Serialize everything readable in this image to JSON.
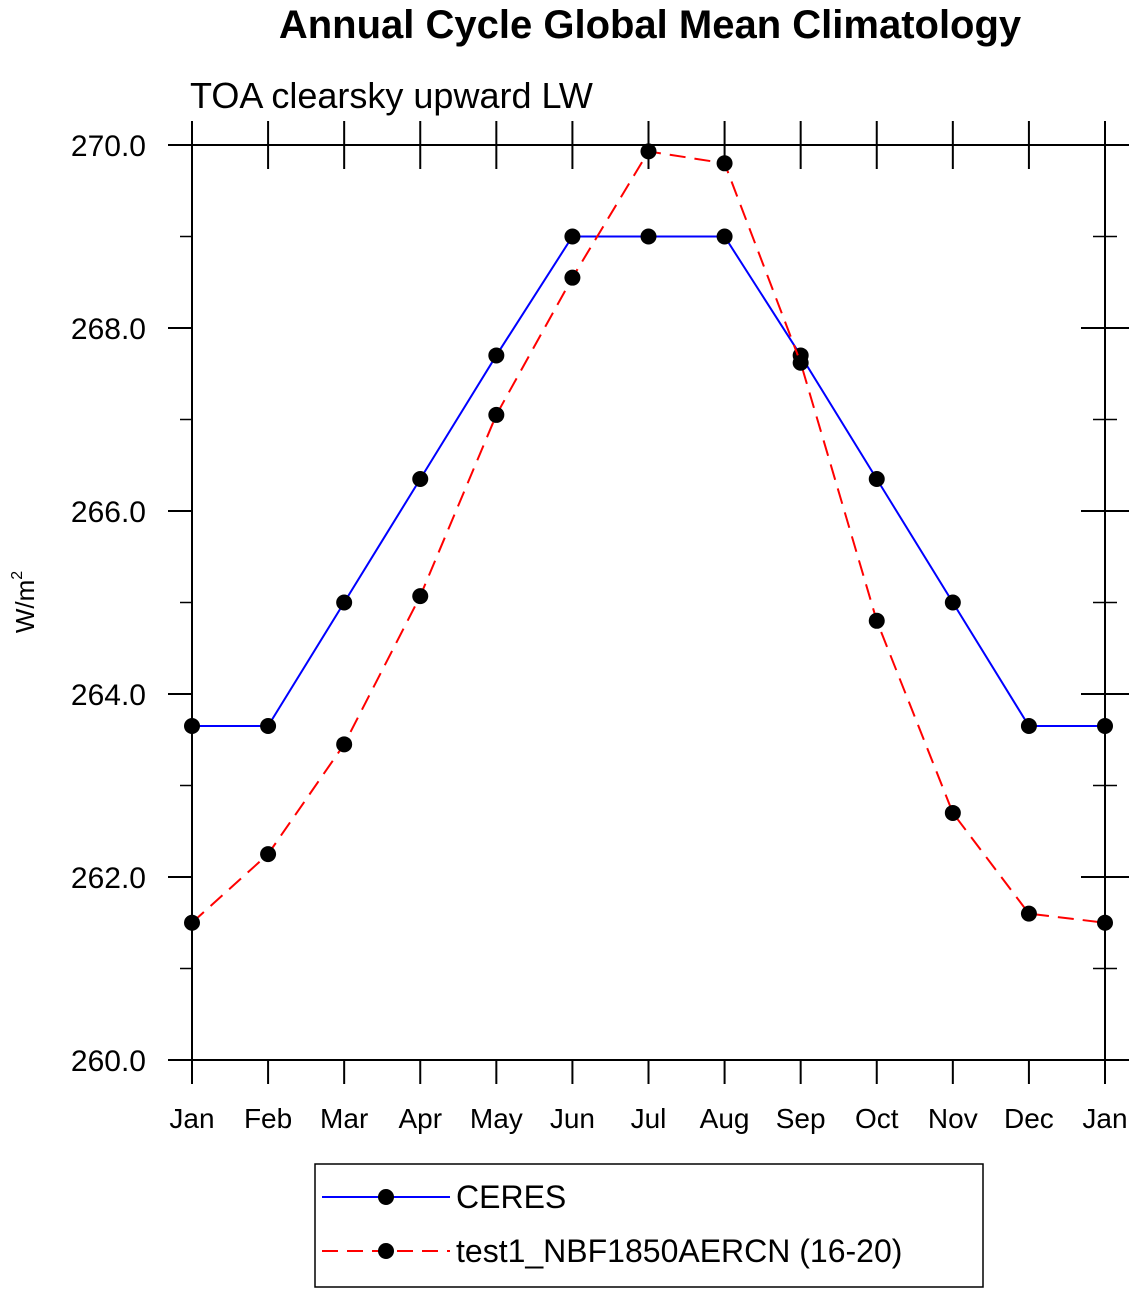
{
  "chart_data": {
    "type": "line",
    "title": "Annual Cycle Global Mean Climatology",
    "subtitle": "TOA clearsky upward LW",
    "ylabel": "W/m",
    "ylabel_sup": "2",
    "xlabel": "",
    "categories": [
      "Jan",
      "Feb",
      "Mar",
      "Apr",
      "May",
      "Jun",
      "Jul",
      "Aug",
      "Sep",
      "Oct",
      "Nov",
      "Dec",
      "Jan"
    ],
    "ylim": [
      260.0,
      270.0
    ],
    "yticks": [
      260.0,
      262.0,
      264.0,
      266.0,
      268.0,
      270.0
    ],
    "ytick_labels": [
      "260.0",
      "262.0",
      "264.0",
      "266.0",
      "268.0",
      "270.0"
    ],
    "yminor_step": 1.0,
    "grid": false,
    "legend_position": "bottom",
    "series": [
      {
        "name": "CERES",
        "color": "#0000ff",
        "dash": "solid",
        "marker": "filled-circle",
        "values": [
          263.65,
          263.65,
          265.0,
          266.35,
          267.7,
          269.0,
          269.0,
          269.0,
          267.7,
          266.35,
          265.0,
          263.65,
          263.65
        ]
      },
      {
        "name": "test1_NBF1850AERCN (16-20)",
        "color": "#ff0000",
        "dash": "dashed",
        "marker": "filled-circle",
        "values": [
          261.5,
          262.25,
          263.45,
          265.07,
          267.05,
          268.55,
          269.93,
          269.8,
          267.62,
          264.8,
          262.7,
          261.6,
          261.5
        ]
      }
    ]
  }
}
